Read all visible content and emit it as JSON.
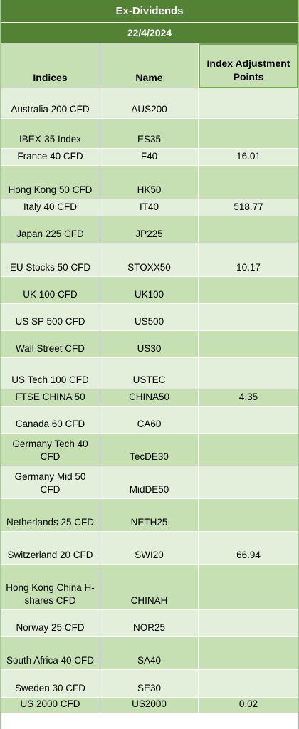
{
  "title": "Ex-Dividends",
  "date": "22/4/2024",
  "headers": {
    "indices": "Indices",
    "name": "Name",
    "points": "Index Adjustment Points"
  },
  "rows": [
    {
      "index": "Australia 200 CFD",
      "name": "AUS200",
      "points": ""
    },
    {
      "index": "IBEX-35 Index",
      "name": "ES35",
      "points": ""
    },
    {
      "index": "France 40 CFD",
      "name": "F40",
      "points": "16.01"
    },
    {
      "index": "Hong Kong 50 CFD",
      "name": "HK50",
      "points": ""
    },
    {
      "index": "Italy 40 CFD",
      "name": "IT40",
      "points": "518.77"
    },
    {
      "index": "Japan 225 CFD",
      "name": "JP225",
      "points": ""
    },
    {
      "index": "EU Stocks 50 CFD",
      "name": "STOXX50",
      "points": "10.17"
    },
    {
      "index": "UK 100 CFD",
      "name": "UK100",
      "points": ""
    },
    {
      "index": "US SP 500 CFD",
      "name": "US500",
      "points": ""
    },
    {
      "index": "Wall Street CFD",
      "name": "US30",
      "points": ""
    },
    {
      "index": "US Tech 100 CFD",
      "name": "USTEC",
      "points": ""
    },
    {
      "index": "FTSE CHINA 50",
      "name": "CHINA50",
      "points": "4.35"
    },
    {
      "index": "Canada 60 CFD",
      "name": "CA60",
      "points": ""
    },
    {
      "index": "Germany Tech 40 CFD",
      "name": "TecDE30",
      "points": ""
    },
    {
      "index": "Germany Mid 50 CFD",
      "name": "MidDE50",
      "points": ""
    },
    {
      "index": "Netherlands 25 CFD",
      "name": "NETH25",
      "points": ""
    },
    {
      "index": "Switzerland 20 CFD",
      "name": "SWI20",
      "points": "66.94"
    },
    {
      "index": "Hong Kong China H-shares CFD",
      "name": "CHINAH",
      "points": ""
    },
    {
      "index": "Norway 25 CFD",
      "name": "NOR25",
      "points": ""
    },
    {
      "index": "South Africa 40 CFD",
      "name": "SA40",
      "points": ""
    },
    {
      "index": "Sweden 30 CFD",
      "name": "SE30",
      "points": ""
    },
    {
      "index": "US 2000 CFD",
      "name": "US2000",
      "points": "0.02"
    }
  ],
  "colors": {
    "header_bg": "#548235",
    "row_light": "#e2efda",
    "row_dark": "#c6e0b4",
    "highlight_border": "#70ad47"
  }
}
